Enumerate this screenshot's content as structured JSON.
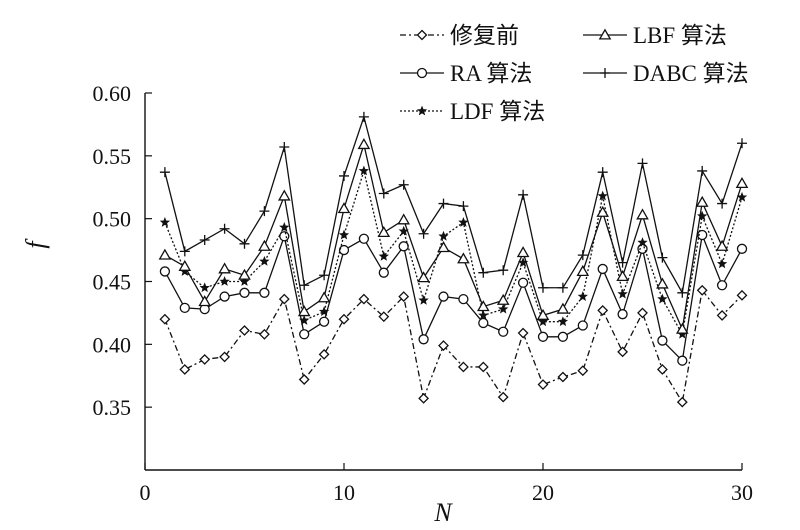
{
  "chart_data": {
    "type": "line",
    "xlabel": "N",
    "ylabel": "f",
    "xlim": [
      0,
      30
    ],
    "ylim": [
      0.3,
      0.6
    ],
    "xticks": [
      0,
      10,
      20,
      30
    ],
    "yticks": [
      0.35,
      0.4,
      0.45,
      0.5,
      0.55,
      0.6
    ],
    "ytick_labels": [
      "0.35",
      "0.40",
      "0.45",
      "0.50",
      "0.55",
      "0.60"
    ],
    "xtick_labels": [
      "0",
      "10",
      "20",
      "30"
    ],
    "grid": false,
    "legend_position": "top-right",
    "x": [
      1,
      2,
      3,
      4,
      5,
      6,
      7,
      8,
      9,
      10,
      11,
      12,
      13,
      14,
      15,
      16,
      17,
      18,
      19,
      20,
      21,
      22,
      23,
      24,
      25,
      26,
      27,
      28,
      29,
      30
    ],
    "series": [
      {
        "name": "修复前",
        "marker": "diamond",
        "dash": "dashdot",
        "values": [
          0.42,
          0.38,
          0.388,
          0.39,
          0.411,
          0.408,
          0.436,
          0.372,
          0.392,
          0.42,
          0.436,
          0.422,
          0.438,
          0.357,
          0.399,
          0.382,
          0.382,
          0.358,
          0.409,
          0.368,
          0.374,
          0.379,
          0.427,
          0.394,
          0.425,
          0.38,
          0.354,
          0.443,
          0.423,
          0.439
        ]
      },
      {
        "name": "RA 算法",
        "marker": "circle",
        "dash": "solid",
        "values": [
          0.458,
          0.429,
          0.428,
          0.438,
          0.441,
          0.441,
          0.486,
          0.408,
          0.418,
          0.475,
          0.484,
          0.457,
          0.478,
          0.404,
          0.438,
          0.436,
          0.417,
          0.41,
          0.449,
          0.406,
          0.406,
          0.415,
          0.46,
          0.424,
          0.476,
          0.403,
          0.387,
          0.487,
          0.447,
          0.476
        ]
      },
      {
        "name": "LDF 算法",
        "marker": "star",
        "dash": "dotted",
        "values": [
          0.497,
          0.458,
          0.445,
          0.45,
          0.45,
          0.466,
          0.493,
          0.419,
          0.426,
          0.487,
          0.538,
          0.47,
          0.49,
          0.435,
          0.486,
          0.497,
          0.423,
          0.428,
          0.465,
          0.418,
          0.418,
          0.438,
          0.518,
          0.44,
          0.481,
          0.436,
          0.408,
          0.502,
          0.464,
          0.517
        ]
      },
      {
        "name": "LBF 算法",
        "marker": "triangle",
        "dash": "solid",
        "values": [
          0.471,
          0.462,
          0.434,
          0.46,
          0.455,
          0.478,
          0.518,
          0.426,
          0.437,
          0.508,
          0.559,
          0.489,
          0.499,
          0.453,
          0.477,
          0.468,
          0.43,
          0.435,
          0.473,
          0.423,
          0.428,
          0.458,
          0.505,
          0.454,
          0.503,
          0.448,
          0.412,
          0.513,
          0.478,
          0.528
        ]
      },
      {
        "name": "DABC 算法",
        "marker": "plus",
        "dash": "solid",
        "values": [
          0.537,
          0.474,
          0.483,
          0.492,
          0.48,
          0.506,
          0.557,
          0.447,
          0.455,
          0.534,
          0.581,
          0.52,
          0.527,
          0.488,
          0.512,
          0.51,
          0.457,
          0.459,
          0.519,
          0.445,
          0.445,
          0.471,
          0.537,
          0.465,
          0.544,
          0.469,
          0.441,
          0.538,
          0.512,
          0.56
        ]
      }
    ]
  }
}
